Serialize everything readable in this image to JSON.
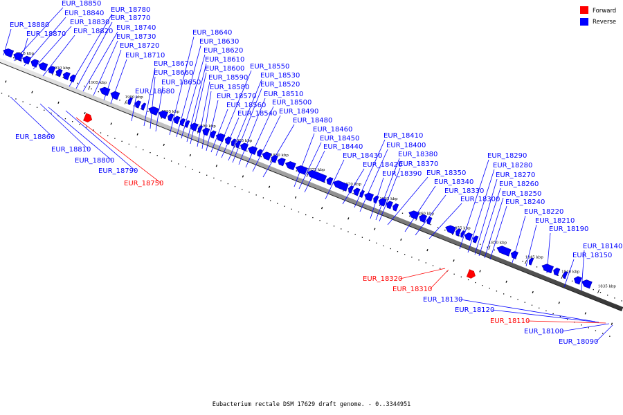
{
  "caption": "Eubacterium rectale DSM 17629 draft genome. - 0..3344951",
  "legend": [
    {
      "label": "Forward",
      "color": "#ff0000"
    },
    {
      "label": "Reverse",
      "color": "#0000ff"
    }
  ],
  "colors": {
    "forward": "#ff0000",
    "reverse": "#0000ff",
    "forward_dark": "#cc0000",
    "reverse_dark": "#0000aa"
  },
  "scale_ticks": [
    "1915 kbp",
    "1910 kbp",
    "1905 kbp",
    "1900 kbp",
    "1895 kbp",
    "1890 kbp",
    "1885 kbp",
    "1880 kbp",
    "1875 kbp",
    "1870 kbp",
    "1865 kbp",
    "1860 kbp",
    "1855 kbp",
    "1850 kbp",
    "1845 kbp",
    "1840 kbp",
    "1835 kbp",
    "1830 kbp"
  ],
  "reverse_labels": [
    "EUR_18880",
    "EUR_18870",
    "EUR_18850",
    "EUR_18840",
    "EUR_18830",
    "EUR_18820",
    "EUR_18780",
    "EUR_18770",
    "EUR_18740",
    "EUR_18730",
    "EUR_18720",
    "EUR_18710",
    "EUR_18680",
    "EUR_18670",
    "EUR_18660",
    "EUR_18650",
    "EUR_18640",
    "EUR_18630",
    "EUR_18620",
    "EUR_18610",
    "EUR_18600",
    "EUR_18590",
    "EUR_18580",
    "EUR_18570",
    "EUR_18560",
    "EUR_18550",
    "EUR_18540",
    "EUR_18530",
    "EUR_18520",
    "EUR_18510",
    "EUR_18500",
    "EUR_18490",
    "EUR_18480",
    "EUR_18460",
    "EUR_18450",
    "EUR_18440",
    "EUR_18430",
    "EUR_18420",
    "EUR_18410",
    "EUR_18400",
    "EUR_18390",
    "EUR_18380",
    "EUR_18370",
    "EUR_18350",
    "EUR_18340",
    "EUR_18330",
    "EUR_18300",
    "EUR_18290",
    "EUR_18280",
    "EUR_18270",
    "EUR_18260",
    "EUR_18250",
    "EUR_18240",
    "EUR_18220",
    "EUR_18210",
    "EUR_18190",
    "EUR_18150",
    "EUR_18140"
  ],
  "lower_labels": [
    {
      "name": "EUR_18860",
      "strand": "reverse"
    },
    {
      "name": "EUR_18810",
      "strand": "reverse"
    },
    {
      "name": "EUR_18800",
      "strand": "reverse"
    },
    {
      "name": "EUR_18790",
      "strand": "reverse"
    },
    {
      "name": "EUR_18750",
      "strand": "forward"
    },
    {
      "name": "EUR_18320",
      "strand": "forward"
    },
    {
      "name": "EUR_18310",
      "strand": "forward"
    },
    {
      "name": "EUR_18130",
      "strand": "reverse"
    },
    {
      "name": "EUR_18120",
      "strand": "reverse"
    },
    {
      "name": "EUR_18110",
      "strand": "forward"
    },
    {
      "name": "EUR_18100",
      "strand": "reverse"
    },
    {
      "name": "EUR_18090",
      "strand": "reverse"
    }
  ]
}
